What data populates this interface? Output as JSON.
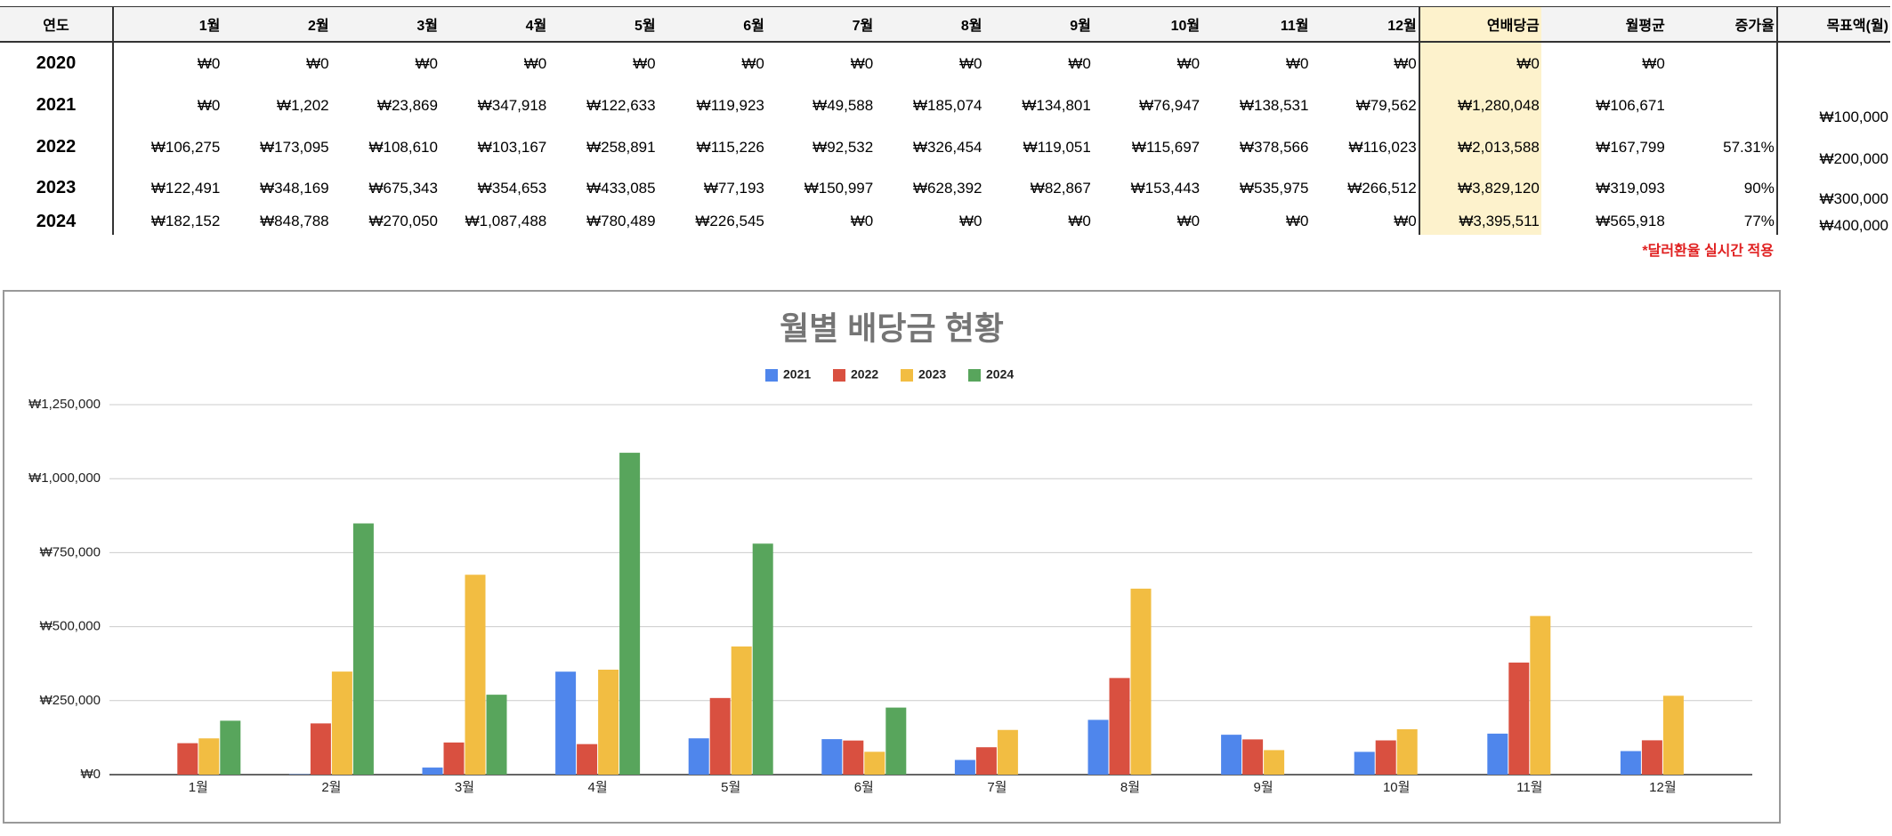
{
  "table": {
    "header": [
      "연도",
      "1월",
      "2월",
      "3월",
      "4월",
      "5월",
      "6월",
      "7월",
      "8월",
      "9월",
      "10월",
      "11월",
      "12월",
      "연배당금",
      "월평균",
      "증가율",
      "목표액(월)"
    ],
    "rows": [
      [
        "2020",
        "₩0",
        "₩0",
        "₩0",
        "₩0",
        "₩0",
        "₩0",
        "₩0",
        "₩0",
        "₩0",
        "₩0",
        "₩0",
        "₩0",
        "₩0",
        "₩0",
        null,
        null
      ],
      [
        "2021",
        "₩0",
        "₩1,202",
        "₩23,869",
        "₩347,918",
        "₩122,633",
        "₩119,923",
        "₩49,588",
        "₩185,074",
        "₩134,801",
        "₩76,947",
        "₩138,531",
        "₩79,562",
        "₩1,280,048",
        "₩106,671",
        null,
        "₩100,000"
      ],
      [
        "2022",
        "₩106,275",
        "₩173,095",
        "₩108,610",
        "₩103,167",
        "₩258,891",
        "₩115,226",
        "₩92,532",
        "₩326,454",
        "₩119,051",
        "₩115,697",
        "₩378,566",
        "₩116,023",
        "₩2,013,588",
        "₩167,799",
        "57.31%",
        "₩200,000"
      ],
      [
        "2023",
        "₩122,491",
        "₩348,169",
        "₩675,343",
        "₩354,653",
        "₩433,085",
        "₩77,193",
        "₩150,997",
        "₩628,392",
        "₩82,867",
        "₩153,443",
        "₩535,975",
        "₩266,512",
        "₩3,829,120",
        "₩319,093",
        "90%",
        "₩300,000"
      ],
      [
        "2024",
        "₩182,152",
        "₩848,788",
        "₩270,050",
        "₩1,087,488",
        "₩780,489",
        "₩226,545",
        "₩0",
        "₩0",
        "₩0",
        "₩0",
        "₩0",
        "₩0",
        "₩3,395,511",
        "₩565,918",
        "77%",
        "₩400,000"
      ]
    ],
    "note": "*달러환율 실시간 적용"
  },
  "chart_data": {
    "type": "bar",
    "title": "월별 배당금 현황",
    "categories": [
      "1월",
      "2월",
      "3월",
      "4월",
      "5월",
      "6월",
      "7월",
      "8월",
      "9월",
      "10월",
      "11월",
      "12월"
    ],
    "series": [
      {
        "name": "2021",
        "color": "#4f86ec",
        "values": [
          0,
          1202,
          23869,
          347918,
          122633,
          119923,
          49588,
          185074,
          134801,
          76947,
          138531,
          79562
        ]
      },
      {
        "name": "2022",
        "color": "#d95040",
        "values": [
          106275,
          173095,
          108610,
          103167,
          258891,
          115226,
          92532,
          326454,
          119051,
          115697,
          378566,
          116023
        ]
      },
      {
        "name": "2023",
        "color": "#f2bd42",
        "values": [
          122491,
          348169,
          675343,
          354653,
          433085,
          77193,
          150997,
          628392,
          82867,
          153443,
          535975,
          266512
        ]
      },
      {
        "name": "2024",
        "color": "#58a55c",
        "values": [
          182152,
          848788,
          270050,
          1087488,
          780489,
          226545,
          0,
          0,
          0,
          0,
          0,
          0
        ]
      }
    ],
    "ylim": [
      0,
      1250000
    ],
    "yticks": [
      {
        "value": 0,
        "label": "₩0"
      },
      {
        "value": 250000,
        "label": "₩250,000"
      },
      {
        "value": 500000,
        "label": "₩500,000"
      },
      {
        "value": 750000,
        "label": "₩750,000"
      },
      {
        "value": 1000000,
        "label": "₩1,000,000"
      },
      {
        "value": 1250000,
        "label": "₩1,250,000"
      }
    ],
    "grid": true,
    "legend": "top"
  }
}
